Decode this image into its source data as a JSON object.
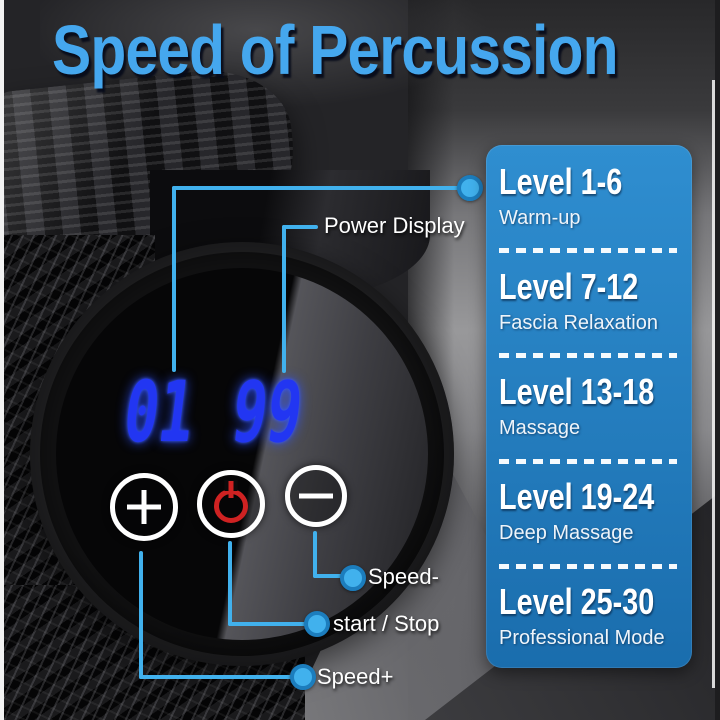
{
  "title": "Speed of Percussion",
  "device_panel": {
    "display_left": "01",
    "display_right": "99"
  },
  "callouts": {
    "power_display": "Power Display",
    "speed_minus": "Speed-",
    "start_stop": "start / Stop",
    "speed_plus": "Speed+"
  },
  "levels_panel": {
    "items": [
      {
        "level": "Level 1-6",
        "desc": "Warm-up"
      },
      {
        "level": "Level 7-12",
        "desc": "Fascia Relaxation"
      },
      {
        "level": "Level 13-18",
        "desc": "Massage"
      },
      {
        "level": "Level 19-24",
        "desc": "Deep Massage"
      },
      {
        "level": "Level 25-30",
        "desc": "Professional Mode"
      }
    ]
  },
  "colors": {
    "title_blue": "#45a7ee",
    "callout_blue": "#41b1ed",
    "panel_blue": "#1f7dc0",
    "led_blue": "#2236f2",
    "power_red": "#cf2222"
  }
}
